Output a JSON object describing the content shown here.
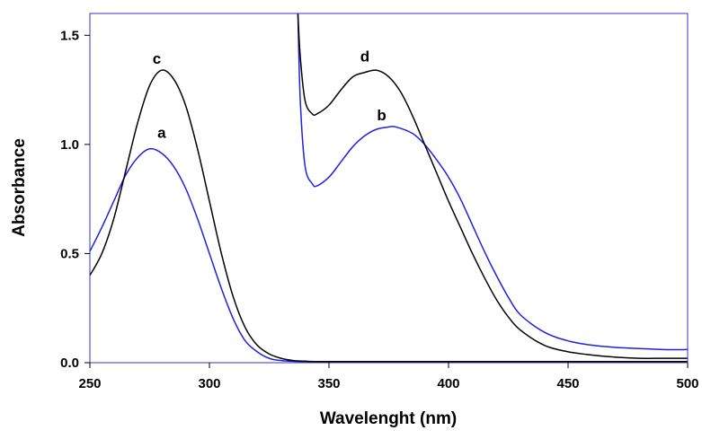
{
  "chart_data": {
    "type": "line",
    "title": "",
    "xlabel": "Wavelenght (nm)",
    "ylabel": "Absorbance",
    "xlim": [
      250,
      500
    ],
    "ylim": [
      0,
      1.6
    ],
    "xticks": [
      250,
      300,
      350,
      400,
      450,
      500
    ],
    "xtick_labels": [
      "250",
      "300",
      "350",
      "400",
      "450",
      "500"
    ],
    "yticks": [
      0,
      0.5,
      1.0,
      1.5
    ],
    "ytick_labels": [
      "0.0",
      "0.5",
      "1.0",
      "1.5"
    ],
    "grid": false,
    "legend": "none",
    "colors": {
      "blue": "#2020e0",
      "black": "#000000",
      "frame": "#3333cc"
    },
    "series": [
      {
        "name": "a",
        "color": "#2020e0",
        "x": [
          250,
          255,
          260,
          265,
          270,
          275,
          280,
          285,
          290,
          295,
          300,
          305,
          310,
          315,
          320,
          325,
          330,
          340,
          360,
          400,
          450,
          500
        ],
        "y": [
          0.51,
          0.62,
          0.74,
          0.86,
          0.94,
          0.98,
          0.96,
          0.9,
          0.8,
          0.66,
          0.5,
          0.34,
          0.2,
          0.1,
          0.05,
          0.02,
          0.01,
          0.005,
          0.003,
          0.002,
          0.002,
          0.002
        ]
      },
      {
        "name": "c",
        "color": "#000000",
        "x": [
          250,
          255,
          260,
          265,
          270,
          275,
          280,
          285,
          290,
          295,
          300,
          305,
          310,
          315,
          320,
          325,
          330,
          335,
          340,
          350,
          400,
          450,
          500
        ],
        "y": [
          0.4,
          0.5,
          0.66,
          0.88,
          1.1,
          1.27,
          1.34,
          1.3,
          1.18,
          0.98,
          0.74,
          0.5,
          0.3,
          0.16,
          0.08,
          0.04,
          0.02,
          0.01,
          0.007,
          0.005,
          0.005,
          0.005,
          0.005
        ]
      },
      {
        "name": "b",
        "color": "#2020e0",
        "x": [
          337,
          338,
          340,
          343,
          345,
          350,
          355,
          360,
          365,
          370,
          375,
          378,
          385,
          390,
          395,
          400,
          405,
          410,
          415,
          420,
          425,
          430,
          440,
          450,
          460,
          470,
          480,
          490,
          500
        ],
        "y": [
          1.6,
          1.2,
          0.9,
          0.82,
          0.81,
          0.85,
          0.92,
          0.99,
          1.04,
          1.07,
          1.08,
          1.08,
          1.05,
          1.0,
          0.93,
          0.85,
          0.75,
          0.63,
          0.51,
          0.4,
          0.3,
          0.22,
          0.14,
          0.1,
          0.08,
          0.07,
          0.065,
          0.06,
          0.06
        ]
      },
      {
        "name": "d",
        "color": "#000000",
        "x": [
          337,
          338,
          340,
          343,
          345,
          350,
          355,
          360,
          365,
          370,
          375,
          380,
          385,
          390,
          395,
          400,
          405,
          410,
          415,
          420,
          425,
          430,
          440,
          450,
          460,
          470,
          480,
          490,
          500
        ],
        "y": [
          1.6,
          1.4,
          1.2,
          1.14,
          1.14,
          1.18,
          1.25,
          1.31,
          1.33,
          1.34,
          1.31,
          1.24,
          1.13,
          1.0,
          0.87,
          0.74,
          0.62,
          0.5,
          0.39,
          0.29,
          0.21,
          0.15,
          0.08,
          0.05,
          0.035,
          0.025,
          0.02,
          0.02,
          0.02
        ]
      }
    ],
    "annotations": [
      {
        "text": "a",
        "x": 280,
        "y": 1.03
      },
      {
        "text": "c",
        "x": 278,
        "y": 1.37
      },
      {
        "text": "b",
        "x": 372,
        "y": 1.11
      },
      {
        "text": "d",
        "x": 365,
        "y": 1.38
      }
    ]
  }
}
